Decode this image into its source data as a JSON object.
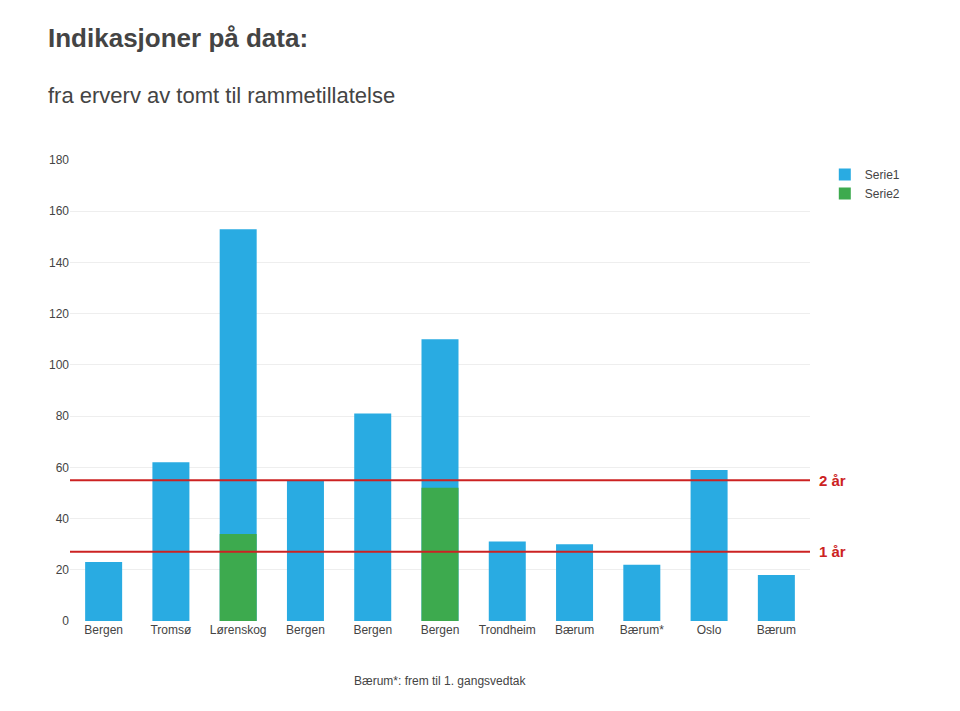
{
  "chart_data": {
    "type": "bar",
    "title": "Indikasjoner på data:",
    "subtitle": "fra erverv av tomt til rammetillatelse",
    "categories": [
      "Bergen",
      "Tromsø",
      "Lørenskog",
      "Bergen",
      "Bergen",
      "Bergen",
      "Trondheim",
      "Bærum",
      "Bærum*",
      "Oslo",
      "Bærum"
    ],
    "series": [
      {
        "name": "Serie1",
        "color": "#29ABE2",
        "values": [
          23,
          62,
          153,
          55,
          81,
          110,
          31,
          30,
          22,
          59,
          18
        ]
      },
      {
        "name": "Serie2",
        "color": "#3DAA4E",
        "values": [
          null,
          null,
          34,
          null,
          null,
          52,
          null,
          null,
          null,
          null,
          null
        ]
      }
    ],
    "reference_lines": [
      {
        "value": 55,
        "label": "2 år",
        "color": "#CC2222"
      },
      {
        "value": 27,
        "label": "1 år",
        "color": "#CC2222"
      }
    ],
    "footnote": "Bærum*: frem til 1. gangsvedtak",
    "ylim": [
      0,
      180
    ],
    "yticks": [
      0,
      20,
      40,
      60,
      80,
      100,
      120,
      140,
      160,
      180
    ],
    "grid": true,
    "legend": "right"
  }
}
